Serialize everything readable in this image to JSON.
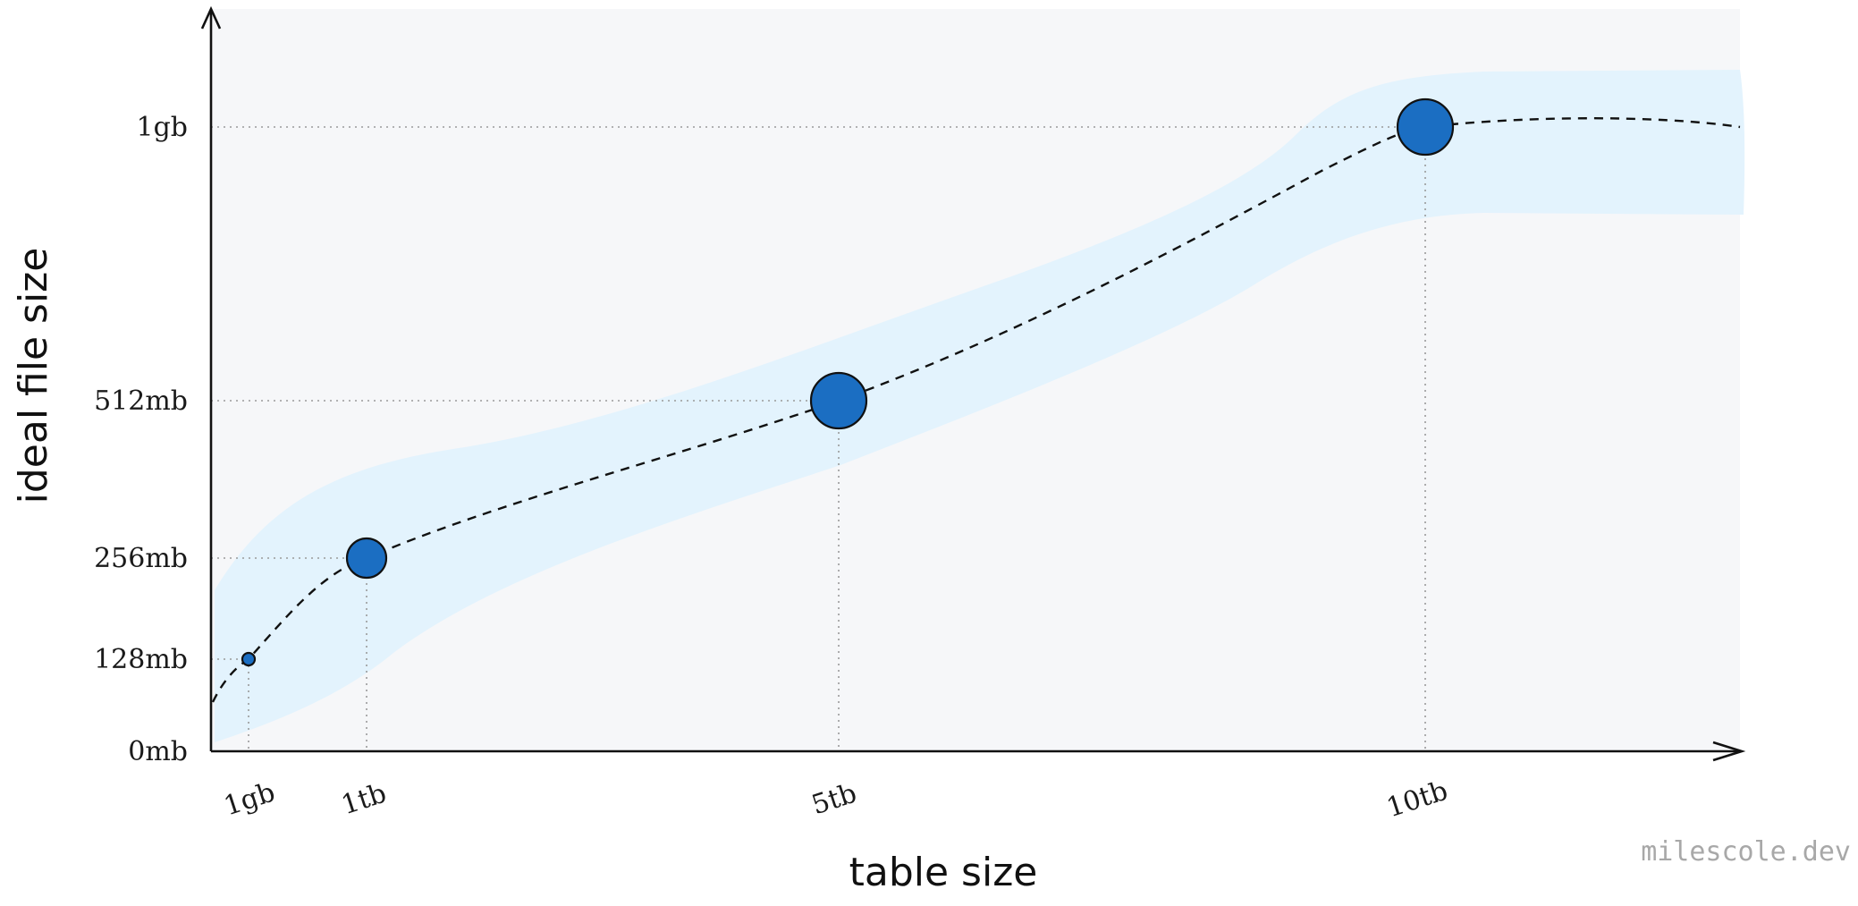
{
  "chart_data": {
    "type": "scatter",
    "xlabel": "table size",
    "ylabel": "ideal file size",
    "x_categories": [
      "1gb",
      "1tb",
      "5tb",
      "10tb"
    ],
    "y_categories": [
      "0mb",
      "128mb",
      "256mb",
      "512mb",
      "1gb"
    ],
    "points": [
      {
        "x": "1gb",
        "y": "128mb"
      },
      {
        "x": "1tb",
        "y": "256mb"
      },
      {
        "x": "5tb",
        "y": "512mb"
      },
      {
        "x": "10tb",
        "y": "1gb"
      }
    ],
    "trend_line": "dashed",
    "confidence_band": true,
    "grid": "dotted guide lines to points",
    "colors": {
      "point": "#1b6ec2",
      "band": "#e3f3fd",
      "plot_background": "#f6f7f9",
      "axis": "#111111",
      "guide": "#9a9a9a"
    }
  },
  "watermark": "milescole.dev"
}
